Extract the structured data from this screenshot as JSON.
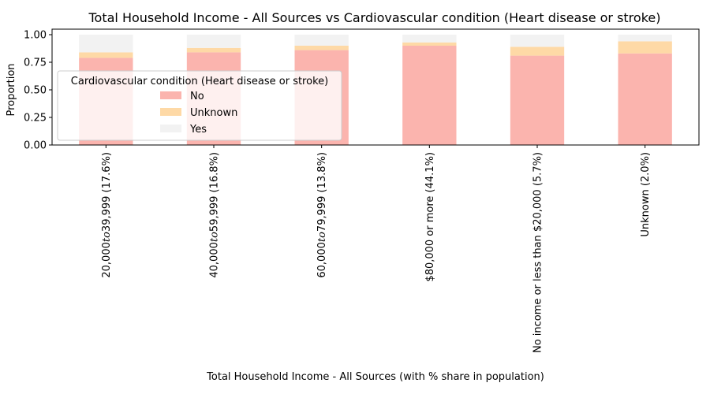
{
  "chart_data": {
    "type": "bar",
    "stacked": true,
    "title": "Total Household Income - All Sources vs Cardiovascular condition (Heart disease or stroke)",
    "xlabel": "Total Household Income - All Sources (with % share in population)",
    "ylabel": "Proportion",
    "ylim": [
      0,
      1.05
    ],
    "yticks": [
      0.0,
      0.25,
      0.5,
      0.75,
      1.0
    ],
    "ytick_labels": [
      "0.00",
      "0.25",
      "0.50",
      "0.75",
      "1.00"
    ],
    "categories": [
      "20,000to39,999 (17.6%)",
      "40,000to59,999 (16.8%)",
      "60,000to79,999 (13.8%)",
      "$80,000 or more (44.1%)",
      "No income or less than $20,000 (5.7%)",
      "Unknown (2.0%)"
    ],
    "category_math_parts": [
      [
        "20,000",
        "to",
        "39,999 (17.6%)"
      ],
      [
        "40,000",
        "to",
        "59,999 (16.8%)"
      ],
      [
        "60,000",
        "to",
        "79,999 (13.8%)"
      ],
      null,
      null,
      null
    ],
    "legend_title": "Cardiovascular condition (Heart disease or stroke)",
    "legend_position": "center-left",
    "grid": false,
    "series": [
      {
        "name": "No",
        "color": "#fbb4ae",
        "values": [
          0.79,
          0.84,
          0.86,
          0.9,
          0.81,
          0.83
        ]
      },
      {
        "name": "Unknown",
        "color": "#fed9a6",
        "values": [
          0.05,
          0.04,
          0.04,
          0.03,
          0.08,
          0.11
        ]
      },
      {
        "name": "Yes",
        "color": "#f2f2f2",
        "values": [
          0.16,
          0.12,
          0.1,
          0.07,
          0.11,
          0.06
        ]
      }
    ]
  }
}
